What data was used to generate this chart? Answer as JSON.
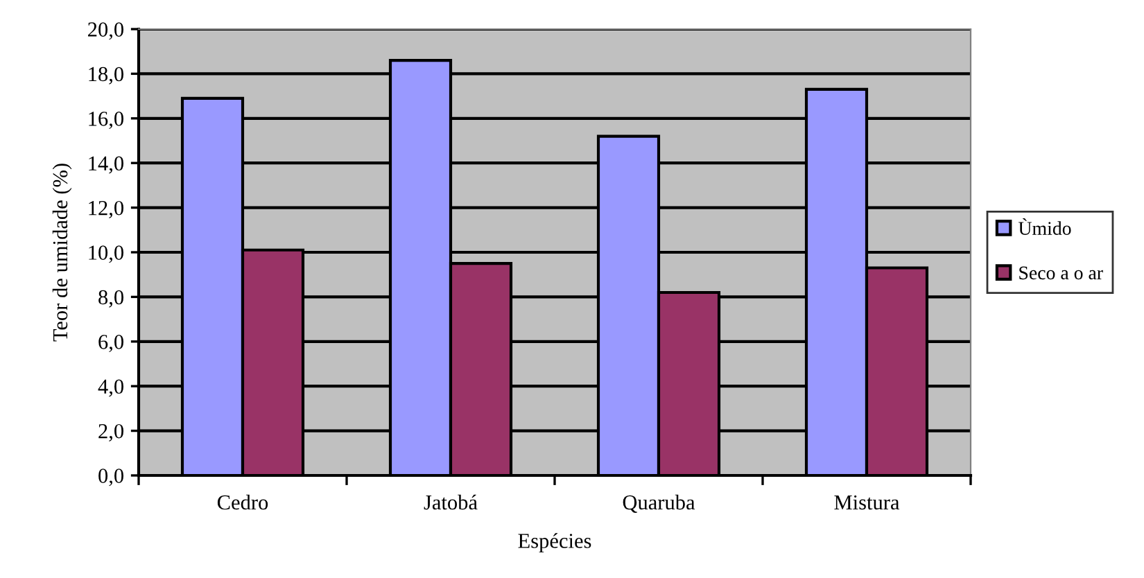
{
  "chart_data": {
    "type": "bar",
    "xlabel": "Espécies",
    "ylabel": "Teor de umidade (%)",
    "categories": [
      "Cedro",
      "Jatobá",
      "Quaruba",
      "Mistura"
    ],
    "series": [
      {
        "name": "Ùmido",
        "color": "#9999ff",
        "values": [
          16.9,
          18.6,
          15.2,
          17.3
        ]
      },
      {
        "name": "Seco a o ar",
        "color": "#993366",
        "values": [
          10.1,
          9.5,
          8.2,
          9.3
        ]
      }
    ],
    "ylim": [
      0,
      20
    ],
    "yticks": [
      {
        "value": 0,
        "label": "0,0"
      },
      {
        "value": 2,
        "label": "2,0"
      },
      {
        "value": 4,
        "label": "4,0"
      },
      {
        "value": 6,
        "label": "6,0"
      },
      {
        "value": 8,
        "label": "8,0"
      },
      {
        "value": 10,
        "label": "10,0"
      },
      {
        "value": 12,
        "label": "12,0"
      },
      {
        "value": 14,
        "label": "14,0"
      },
      {
        "value": 16,
        "label": "16,0"
      },
      {
        "value": 18,
        "label": "18,0"
      },
      {
        "value": 20,
        "label": "20,0"
      }
    ],
    "grid": "y",
    "legend": "right"
  }
}
